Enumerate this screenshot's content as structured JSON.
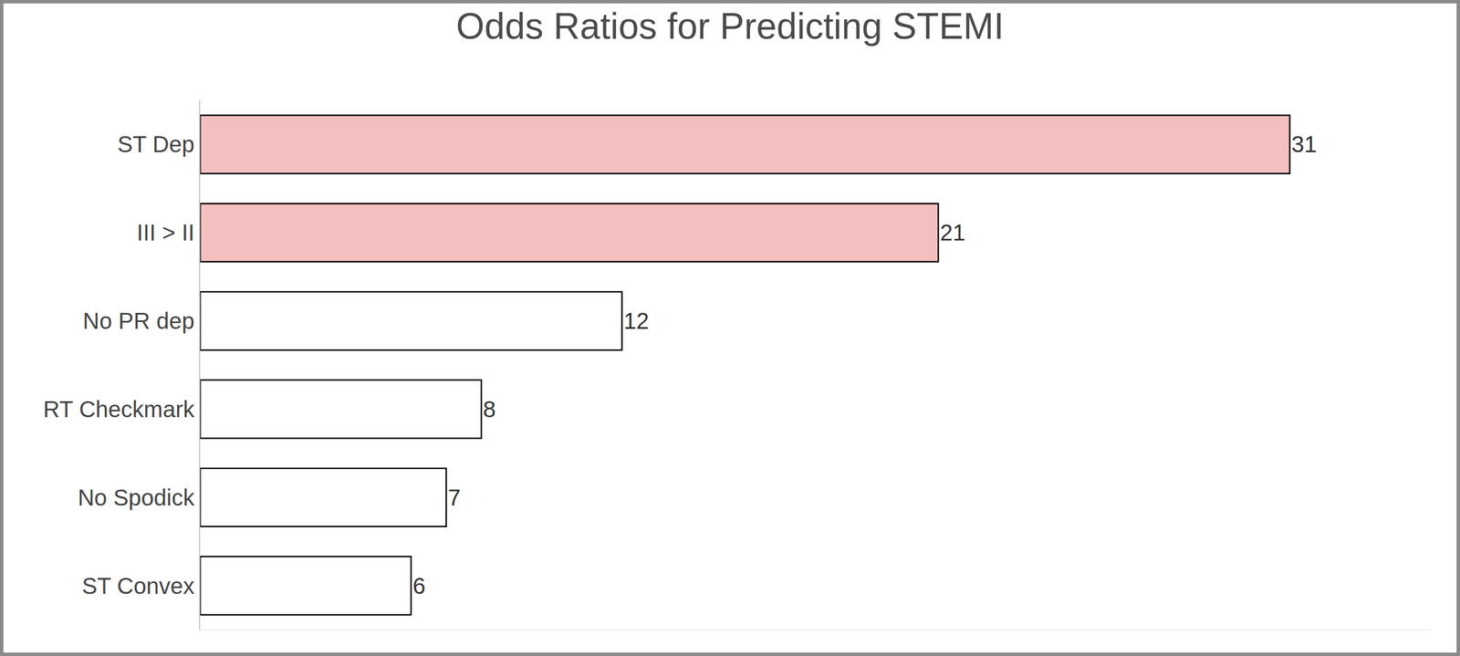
{
  "chart_data": {
    "type": "bar",
    "title": "Odds Ratios for Predicting STEMI",
    "orientation": "horizontal",
    "categories": [
      "ST Dep",
      "III > II",
      "No PR dep",
      "RT Checkmark",
      "No Spodick",
      "ST Convex"
    ],
    "values": [
      31,
      21,
      12,
      8,
      7,
      6
    ],
    "colors": [
      "#f4bfbf",
      "#f4bfbf",
      "#ffffff",
      "#ffffff",
      "#ffffff",
      "#ffffff"
    ],
    "xlim": [
      0,
      35
    ],
    "xticks": [],
    "data_labels": true,
    "tick_labels": "y",
    "grid": false
  }
}
